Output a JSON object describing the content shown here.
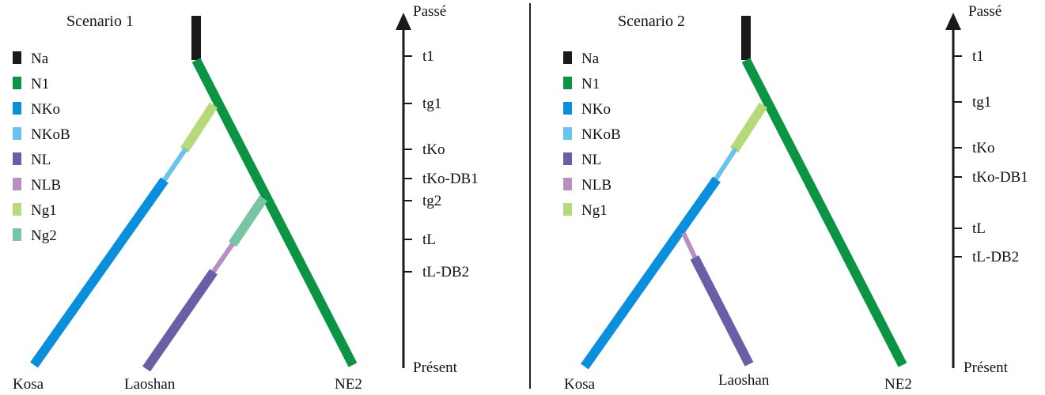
{
  "colors": {
    "Na": "#1a1a1a",
    "N1": "#0a9444",
    "NKo": "#0a8fdc",
    "NKoB": "#69c3ee",
    "NL": "#6a5ea6",
    "NLB": "#b98fc3",
    "Ng1": "#b6d97a",
    "Ng2": "#77c5a2",
    "axis": "#1a1a1a",
    "divider": "#222222"
  },
  "scenario1": {
    "title": "Scenario 1",
    "legend": [
      "Na",
      "N1",
      "NKo",
      "NKoB",
      "NL",
      "NLB",
      "Ng1",
      "Ng2"
    ],
    "time_axis": {
      "top_label": "Passé",
      "bottom_label": "Présent",
      "ticks": [
        "t1",
        "tg1",
        "tKo",
        "tKo-DB1",
        "tg2",
        "tL",
        "tL-DB2"
      ]
    },
    "populations": [
      "Kosa",
      "Laoshan",
      "NE2"
    ]
  },
  "scenario2": {
    "title": "Scenario 2",
    "legend": [
      "Na",
      "N1",
      "NKo",
      "NKoB",
      "NL",
      "NLB",
      "Ng1"
    ],
    "time_axis": {
      "top_label": "Passé",
      "bottom_label": "Présent",
      "ticks": [
        "t1",
        "tg1",
        "tKo",
        "tKo-DB1",
        "tL",
        "tL-DB2"
      ]
    },
    "populations": [
      "Kosa",
      "Laoshan",
      "NE2"
    ]
  }
}
